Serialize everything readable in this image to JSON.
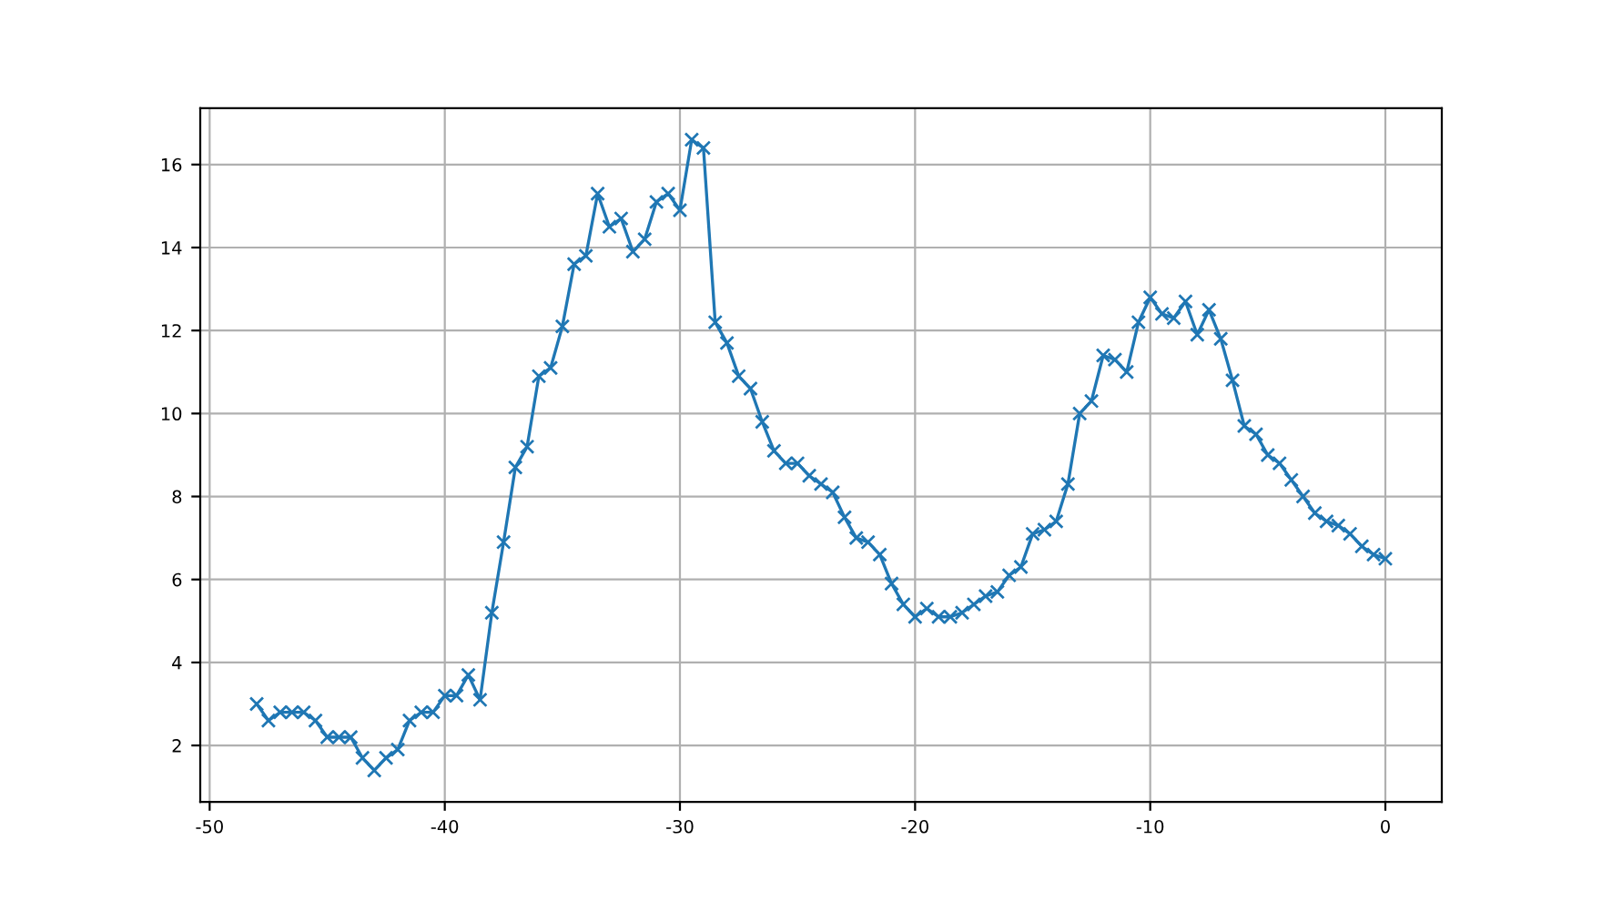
{
  "chart_data": {
    "type": "line",
    "x": [
      -48,
      -47.5,
      -47,
      -46.5,
      -46,
      -45.5,
      -45,
      -44.5,
      -44,
      -43.5,
      -43,
      -42.5,
      -42,
      -41.5,
      -41,
      -40.5,
      -40,
      -39.5,
      -39,
      -38.5,
      -38,
      -37.5,
      -37,
      -36.5,
      -36,
      -35.5,
      -35,
      -34.5,
      -34,
      -33.5,
      -33,
      -32.5,
      -32,
      -31.5,
      -31,
      -30.5,
      -30,
      -29.5,
      -29,
      -28.5,
      -28,
      -27.5,
      -27,
      -26.5,
      -26,
      -25.5,
      -25,
      -24.5,
      -24,
      -23.5,
      -23,
      -22.5,
      -22,
      -21.5,
      -21,
      -20.5,
      -20,
      -19.5,
      -19,
      -18.5,
      -18,
      -17.5,
      -17,
      -16.5,
      -16,
      -15.5,
      -15,
      -14.5,
      -14,
      -13.5,
      -13,
      -12.5,
      -12,
      -11.5,
      -11,
      -10.5,
      -10,
      -9.5,
      -9,
      -8.5,
      -8,
      -7.5,
      -7,
      -6.5,
      -6,
      -5.5,
      -5,
      -4.5,
      -4,
      -3.5,
      -3,
      -2.5,
      -2,
      -1.5,
      -1,
      -0.5,
      0
    ],
    "series": [
      {
        "color": "#1f77b4",
        "values": [
          3.0,
          2.6,
          2.8,
          2.8,
          2.8,
          2.6,
          2.2,
          2.2,
          2.2,
          1.7,
          1.4,
          1.7,
          1.9,
          2.6,
          2.8,
          2.8,
          3.2,
          3.2,
          3.7,
          3.1,
          5.2,
          6.9,
          8.7,
          9.2,
          10.9,
          11.1,
          12.1,
          13.6,
          13.8,
          15.3,
          14.5,
          14.7,
          13.9,
          14.2,
          15.1,
          15.3,
          14.9,
          16.6,
          16.4,
          12.2,
          11.7,
          10.9,
          10.6,
          9.8,
          9.1,
          8.8,
          8.8,
          8.5,
          8.3,
          8.1,
          7.5,
          7.0,
          6.9,
          6.6,
          5.9,
          5.4,
          5.1,
          5.3,
          5.1,
          5.1,
          5.2,
          5.4,
          5.6,
          5.7,
          6.1,
          6.3,
          7.1,
          7.2,
          7.4,
          8.3,
          10.0,
          10.3,
          11.4,
          11.3,
          11.0,
          12.2,
          12.8,
          12.4,
          12.3,
          12.7,
          11.9,
          12.5,
          11.8,
          10.8,
          9.7,
          9.5,
          9.0,
          8.8,
          8.4,
          8.0,
          7.6,
          7.4,
          7.3,
          7.1,
          6.8,
          6.6,
          6.5
        ]
      }
    ],
    "xlim": [
      -50.4,
      2.4
    ],
    "xticks": [
      -50,
      -40,
      -30,
      -20,
      -10,
      0
    ],
    "ylim": [
      0.64,
      17.36
    ],
    "yticks": [
      2,
      4,
      6,
      8,
      10,
      12,
      14,
      16
    ],
    "grid": true,
    "marker": "cross",
    "line_style": "solid",
    "legend": false
  }
}
